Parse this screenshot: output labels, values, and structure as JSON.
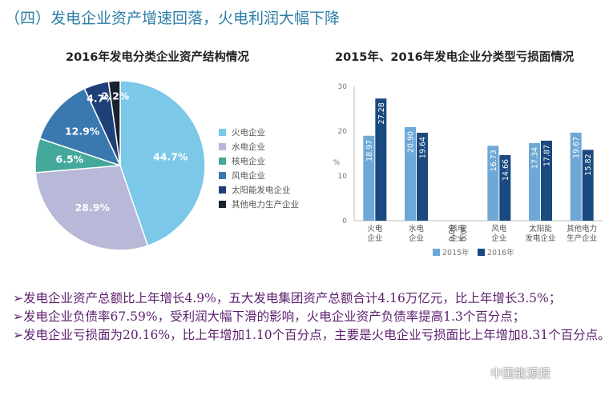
{
  "headline": "（四）发电企业资产增速回落，火电利润大幅下降",
  "chart_data": [
    {
      "type": "pie",
      "title": "2016年发电分类企业资产结构情况",
      "categories": [
        "火电企业",
        "水电企业",
        "核电企业",
        "风电企业",
        "太阳能发电企业",
        "其他电力生产企业"
      ],
      "values": [
        44.7,
        28.9,
        6.5,
        12.9,
        4.7,
        2.2
      ],
      "labels": [
        "44.7%",
        "28.9%",
        "6.5%",
        "12.9%",
        "4.7%",
        "2.2%"
      ],
      "legend": "right",
      "colors": [
        "#7cc8e8",
        "#b8b8d8",
        "#44a89a",
        "#3a78b0",
        "#1f3f78",
        "#1a2230"
      ]
    },
    {
      "type": "bar",
      "title": "2015年、2016年发电企业分类型亏损面情况",
      "categories": [
        "火电\n企业",
        "水电\n企业",
        "核电\n企业",
        "风电\n企业",
        "太阳能\n发电企业",
        "其他电力\n生产企业"
      ],
      "series": [
        {
          "name": "2015年",
          "values": [
            18.97,
            20.9,
            0.0,
            16.73,
            17.34,
            19.67
          ],
          "labels": [
            "18.97",
            "20.90",
            "0.00",
            "16.73",
            "17.34",
            "19.67"
          ],
          "color": "#6fa8d6"
        },
        {
          "name": "2016年",
          "values": [
            27.28,
            19.64,
            0.0,
            14.66,
            17.87,
            15.82
          ],
          "labels": [
            "27.28",
            "19.64",
            "0.00",
            "14.66",
            "17.87",
            "15.82"
          ],
          "color": "#1a4a80"
        }
      ],
      "ylabel": "%",
      "ylim": [
        0,
        30
      ],
      "yticks": [
        "0",
        "10",
        "20",
        "30"
      ],
      "grid": false,
      "legend": "bottom"
    }
  ],
  "bullets": [
    "发电企业资产总额比上年增长4.9%，五大发电集团资产总额合计4.16万亿元，比上年增长3.5%；",
    "发电企业负债率67.59%，受利润大幅下滑的影响，火电企业资产负债率提高1.3个百分点；",
    "发电企业亏损面为20.16%，比上年增加1.10个百分点，主要是火电企业亏损面比上年增加8.31个百分点。"
  ],
  "bullet_marker": "➢",
  "watermark": "中国能源报"
}
